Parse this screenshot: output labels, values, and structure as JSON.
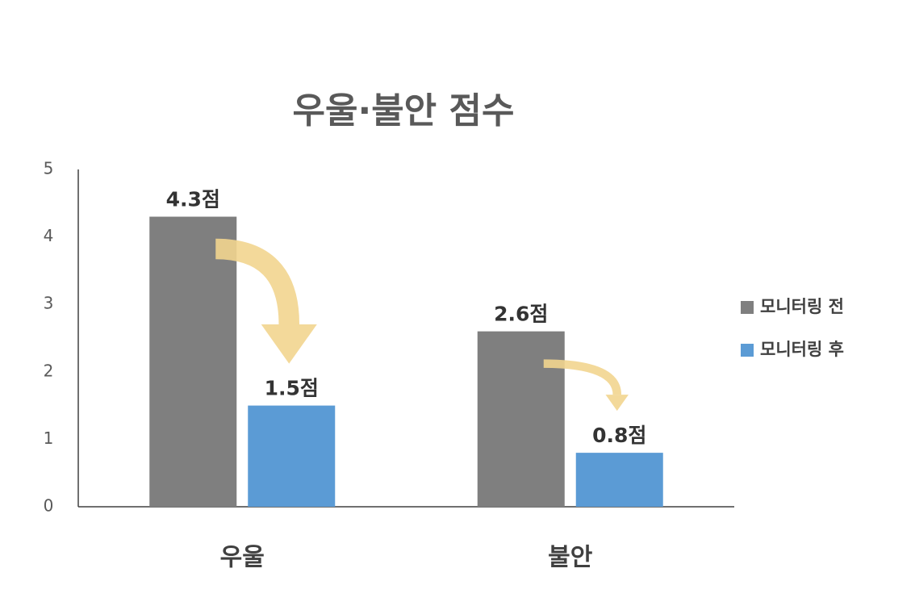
{
  "chart_data": {
    "type": "bar",
    "title": "우울·불안 점수",
    "categories": [
      "우울",
      "불안"
    ],
    "series": [
      {
        "name": "모니터링 전",
        "color": "#7f7f7f",
        "values": [
          4.3,
          2.6
        ],
        "value_labels": [
          "4.3점",
          "2.6점"
        ]
      },
      {
        "name": "모니터링 후",
        "color": "#5b9bd5",
        "values": [
          1.5,
          0.8
        ],
        "value_labels": [
          "1.5점",
          "0.8점"
        ]
      }
    ],
    "ylim": [
      0,
      5
    ],
    "yticks": [
      0,
      1,
      2,
      3,
      4,
      5
    ],
    "grid": false,
    "legend": "right"
  }
}
